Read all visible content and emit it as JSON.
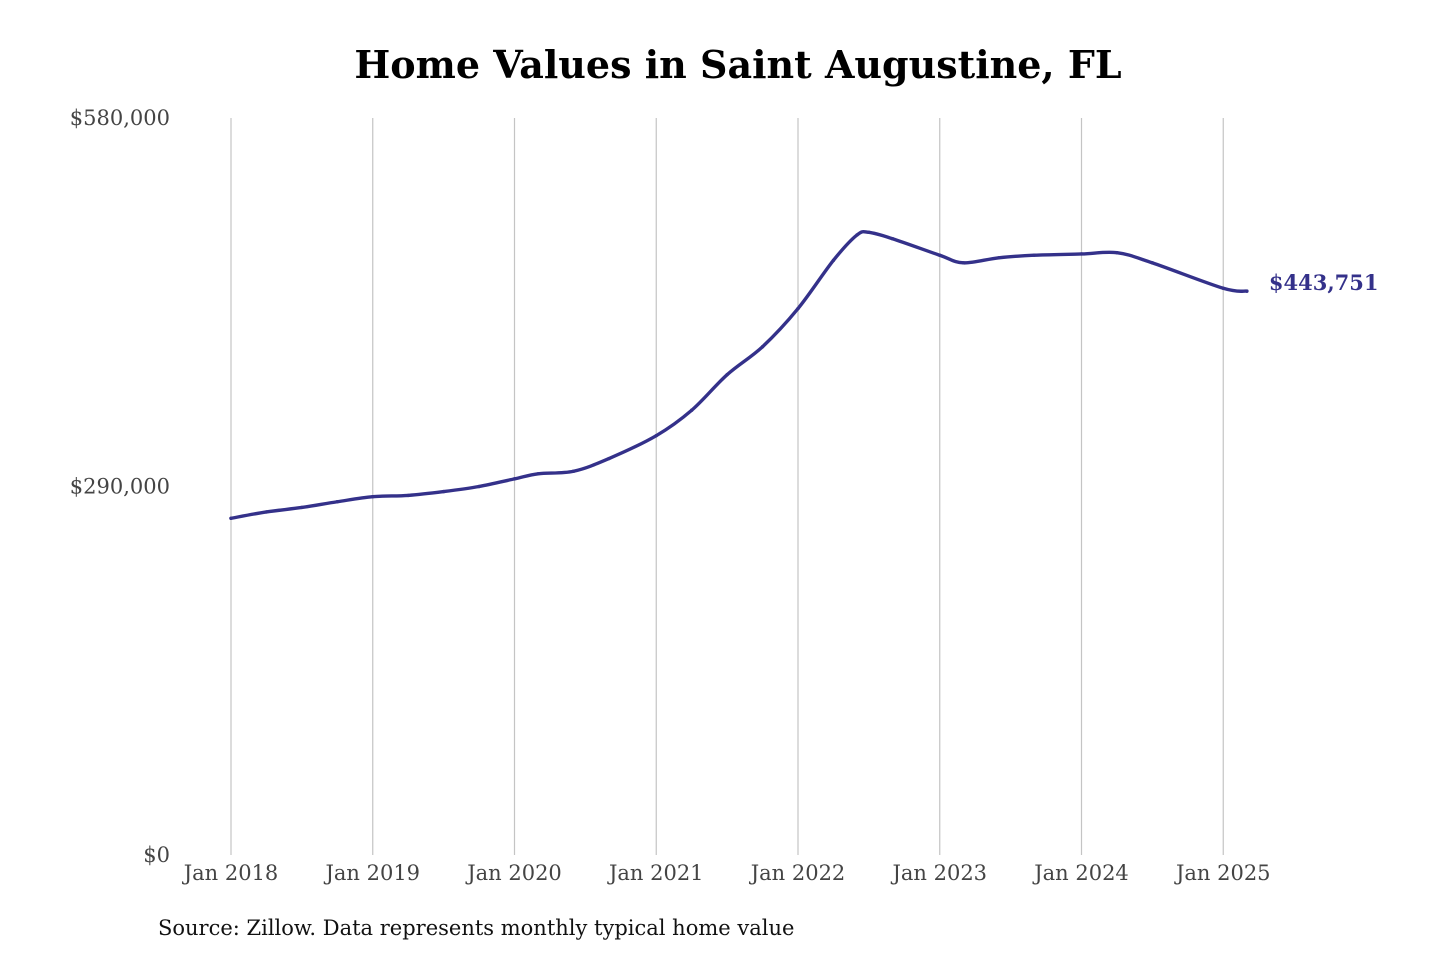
{
  "chart_data": {
    "type": "line",
    "title": "Home Values in Saint Augustine, FL",
    "xlabel": "",
    "ylabel": "",
    "ylim": [
      0,
      580000
    ],
    "y_ticks": [
      {
        "value": 0,
        "label": "$0"
      },
      {
        "value": 290000,
        "label": "$290,000"
      },
      {
        "value": 580000,
        "label": "$580,000"
      }
    ],
    "x_ticks": [
      {
        "value": "2018-01",
        "label": "Jan 2018"
      },
      {
        "value": "2019-01",
        "label": "Jan 2019"
      },
      {
        "value": "2020-01",
        "label": "Jan 2020"
      },
      {
        "value": "2021-01",
        "label": "Jan 2021"
      },
      {
        "value": "2022-01",
        "label": "Jan 2022"
      },
      {
        "value": "2023-01",
        "label": "Jan 2023"
      },
      {
        "value": "2024-01",
        "label": "Jan 2024"
      },
      {
        "value": "2025-01",
        "label": "Jan 2025"
      }
    ],
    "grid": {
      "vertical": true,
      "horizontal": false
    },
    "series": [
      {
        "color": "#34318a",
        "end_label": "$443,751",
        "x": [
          "2018-01",
          "2018-04",
          "2018-07",
          "2018-10",
          "2019-01",
          "2019-04",
          "2019-07",
          "2019-10",
          "2020-01",
          "2020-03",
          "2020-06",
          "2020-09",
          "2021-01",
          "2021-04",
          "2021-07",
          "2021-10",
          "2022-01",
          "2022-04",
          "2022-06",
          "2022-07",
          "2022-09",
          "2023-01",
          "2023-03",
          "2023-06",
          "2023-09",
          "2024-01",
          "2024-04",
          "2024-07",
          "2025-01",
          "2025-03"
        ],
        "values": [
          265000,
          270000,
          273500,
          278000,
          282000,
          283000,
          286000,
          290000,
          296000,
          300000,
          302000,
          312000,
          330000,
          350000,
          378000,
          400000,
          430000,
          468000,
          488000,
          490000,
          485000,
          472000,
          466000,
          470000,
          472000,
          473000,
          474000,
          466000,
          446000,
          443751
        ]
      }
    ]
  },
  "source": "Source: Zillow. Data represents monthly typical home value"
}
